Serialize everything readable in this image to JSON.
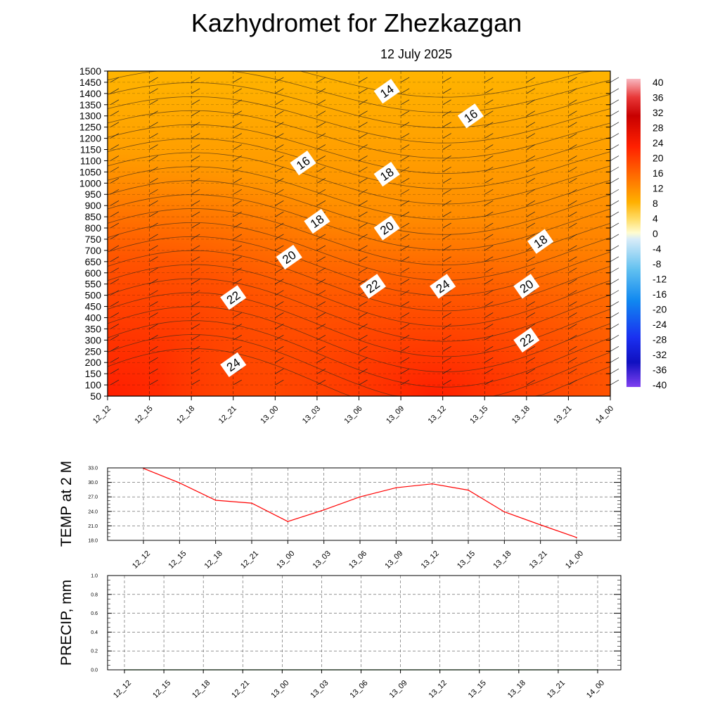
{
  "title": "Kazhydromet  for Zhezkazgan",
  "subtitle": "12 July 2025",
  "time_labels": [
    "12_12",
    "12_15",
    "12_18",
    "12_21",
    "13_00",
    "13_03",
    "13_06",
    "13_09",
    "13_12",
    "13_15",
    "13_18",
    "13_21",
    "14_00"
  ],
  "colors": {
    "temp_line": "#ff0000",
    "precip_line": "#006400",
    "grid": "#555555",
    "isotherm": "#3a2a1a"
  },
  "chart_data": [
    {
      "type": "heatmap",
      "title": "Kazhydromet  for Zhezkazgan",
      "subtitle": "12 July 2025",
      "x": [
        "12_12",
        "12_15",
        "12_18",
        "12_21",
        "13_00",
        "13_03",
        "13_06",
        "13_09",
        "13_12",
        "13_15",
        "13_18",
        "13_21",
        "14_00"
      ],
      "y_ticks": [
        50,
        100,
        150,
        200,
        250,
        300,
        350,
        400,
        450,
        500,
        550,
        600,
        650,
        700,
        750,
        800,
        850,
        900,
        950,
        1000,
        1050,
        1100,
        1150,
        1200,
        1250,
        1300,
        1350,
        1400,
        1450,
        1500
      ],
      "ylim": [
        50,
        1500
      ],
      "grid": true,
      "colorbar": {
        "labels": [
          40,
          36,
          32,
          28,
          24,
          20,
          16,
          12,
          8,
          4,
          0,
          -4,
          -8,
          -12,
          -16,
          -20,
          -24,
          -28,
          -32,
          -36,
          -40
        ],
        "range": [
          -40,
          40
        ]
      },
      "contour_labels": [
        {
          "value": "14",
          "x": "13_08",
          "y": 1410
        },
        {
          "value": "16",
          "x": "13_14",
          "y": 1300
        },
        {
          "value": "16",
          "x": "13_02",
          "y": 1090
        },
        {
          "value": "18",
          "x": "13_08",
          "y": 1040
        },
        {
          "value": "18",
          "x": "13_03",
          "y": 830
        },
        {
          "value": "20",
          "x": "13_08",
          "y": 800
        },
        {
          "value": "18",
          "x": "13_19",
          "y": 740
        },
        {
          "value": "20",
          "x": "13_01",
          "y": 670
        },
        {
          "value": "22",
          "x": "13_07",
          "y": 540
        },
        {
          "value": "24",
          "x": "13_12",
          "y": 540
        },
        {
          "value": "20",
          "x": "13_18",
          "y": 540
        },
        {
          "value": "22",
          "x": "12_21",
          "y": 490
        },
        {
          "value": "22",
          "x": "13_18",
          "y": 300
        },
        {
          "value": "24",
          "x": "12_21",
          "y": 190
        }
      ]
    },
    {
      "type": "line",
      "ylabel": "TEMP at 2 M",
      "x": [
        "12_12",
        "12_15",
        "12_18",
        "12_21",
        "13_00",
        "13_03",
        "13_06",
        "13_09",
        "13_12",
        "13_15",
        "13_18",
        "13_21",
        "14_00"
      ],
      "ylim": [
        18.0,
        33.0
      ],
      "y_ticks": [
        "33.0",
        "30.0",
        "27.0",
        "24.0",
        "21.0",
        "18.0"
      ],
      "grid": true,
      "series": [
        {
          "values": [
            32.9,
            29.9,
            26.3,
            25.7,
            21.9,
            24.3,
            27.0,
            28.9,
            29.7,
            28.4,
            23.9,
            21.2,
            18.6
          ]
        }
      ]
    },
    {
      "type": "line",
      "ylabel": "PRECIP, mm",
      "x": [
        "12_12",
        "12_15",
        "12_18",
        "12_21",
        "13_00",
        "13_03",
        "13_06",
        "13_09",
        "13_12",
        "13_15",
        "13_18",
        "13_21",
        "14_00"
      ],
      "ylim": [
        0.0,
        1.0
      ],
      "y_ticks": [
        "1.0",
        "0.8",
        "0.6",
        "0.4",
        "0.2",
        "0.0"
      ],
      "grid": true,
      "series": [
        {
          "values": [
            0,
            0,
            0,
            0,
            0,
            0,
            0,
            0,
            0,
            0,
            0,
            0,
            0
          ]
        }
      ]
    }
  ]
}
